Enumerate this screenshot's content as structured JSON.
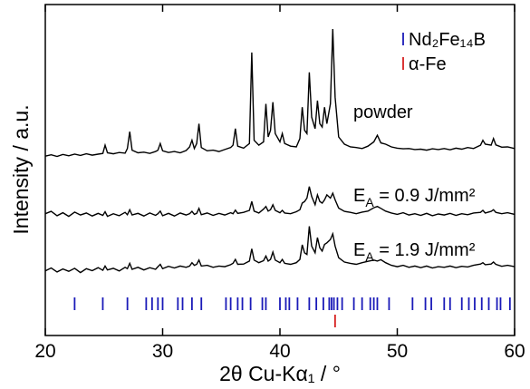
{
  "chart_data": {
    "type": "line",
    "x_label": "2θ Cu-Kα₁ / °",
    "y_label": "Intensity / a.u.",
    "xlim": [
      20,
      60
    ],
    "xticks": [
      20,
      30,
      40,
      50,
      60
    ],
    "ylim": [
      0,
      100
    ],
    "legend": "upper right",
    "x": [
      20,
      20.5,
      21,
      21.5,
      22,
      22.5,
      23,
      23.5,
      24,
      24.5,
      24.9,
      25.1,
      25.3,
      25.8,
      26.3,
      26.8,
      27.0,
      27.2,
      27.4,
      27.9,
      28.4,
      28.9,
      29.4,
      29.6,
      29.8,
      30.0,
      30.5,
      31.0,
      31.5,
      32.0,
      32.3,
      32.5,
      32.7,
      32.9,
      33.1,
      33.3,
      33.8,
      34.3,
      34.8,
      35.3,
      35.8,
      36.0,
      36.2,
      36.4,
      36.9,
      37.4,
      37.6,
      37.8,
      38.2,
      38.6,
      38.8,
      39.0,
      39.2,
      39.4,
      39.6,
      40.0,
      40.2,
      40.4,
      40.9,
      41.4,
      41.7,
      41.9,
      42.1,
      42.3,
      42.5,
      42.7,
      43.0,
      43.2,
      43.4,
      43.6,
      43.8,
      44.0,
      44.3,
      44.5,
      44.7,
      45.0,
      45.5,
      46.0,
      46.5,
      47.0,
      47.5,
      48.0,
      48.3,
      48.6,
      49.0,
      49.5,
      50.0,
      50.5,
      51.0,
      51.5,
      52.0,
      52.5,
      53.0,
      53.5,
      54.0,
      54.5,
      55.0,
      55.5,
      56.0,
      56.5,
      57.1,
      57.3,
      57.5,
      58.0,
      58.2,
      58.4,
      58.9,
      59.4,
      60
    ],
    "series": [
      {
        "name": [
          "powder"
        ],
        "color": "#000000",
        "values": [
          54.2,
          54.6,
          54.1,
          54.7,
          54.3,
          54.8,
          54.4,
          54.9,
          54.5,
          54.8,
          55.0,
          57.5,
          55.2,
          54.9,
          55.3,
          55.1,
          56.5,
          61.6,
          56.0,
          55.2,
          55.4,
          55.0,
          55.6,
          56.0,
          58.0,
          55.8,
          55.3,
          55.6,
          55.2,
          55.9,
          57.0,
          59.0,
          56.5,
          58.0,
          64.0,
          56.8,
          55.8,
          56.0,
          55.6,
          56.2,
          56.8,
          57.5,
          62.5,
          57.2,
          56.6,
          58.0,
          85.5,
          59.0,
          57.5,
          58.5,
          70.0,
          60.0,
          62.0,
          70.5,
          61.0,
          58.5,
          61.0,
          58.0,
          57.2,
          57.0,
          59.5,
          69.0,
          62.0,
          61.0,
          79.5,
          66.0,
          62.5,
          71.0,
          64.0,
          63.0,
          69.0,
          64.0,
          70.0,
          92.6,
          72.0,
          60.0,
          57.8,
          57.0,
          56.8,
          56.5,
          57.2,
          58.5,
          60.5,
          58.2,
          57.8,
          57.0,
          56.6,
          56.4,
          56.5,
          56.2,
          56.3,
          56.0,
          56.4,
          56.2,
          56.5,
          56.1,
          56.6,
          56.3,
          56.8,
          56.5,
          57.5,
          59.0,
          57.8,
          57.5,
          59.5,
          57.6,
          56.9,
          57.0,
          56.5
        ]
      },
      {
        "name": [
          "E",
          "A",
          " = 0.9 J/mm²"
        ],
        "color": "#000000",
        "values": [
          36.8,
          37.5,
          36.2,
          37.1,
          36.0,
          37.3,
          36.4,
          37.0,
          36.1,
          36.9,
          36.3,
          37.4,
          36.0,
          36.8,
          36.2,
          37.2,
          36.5,
          38.0,
          36.4,
          36.9,
          36.1,
          37.0,
          36.3,
          36.8,
          37.6,
          36.2,
          36.9,
          36.1,
          37.0,
          36.4,
          36.8,
          37.5,
          36.6,
          36.9,
          38.4,
          36.5,
          37.0,
          36.3,
          36.9,
          36.4,
          37.1,
          36.8,
          37.9,
          36.9,
          37.2,
          37.8,
          40.5,
          37.6,
          37.0,
          38.2,
          39.0,
          37.6,
          38.0,
          39.5,
          37.8,
          37.1,
          37.8,
          37.0,
          36.8,
          37.4,
          38.0,
          40.0,
          40.5,
          41.5,
          45.0,
          42.0,
          39.5,
          42.5,
          40.5,
          40.0,
          41.0,
          42.5,
          41.5,
          43.0,
          41.0,
          38.5,
          37.5,
          37.2,
          36.8,
          37.3,
          37.6,
          38.6,
          39.0,
          38.4,
          37.6,
          37.0,
          36.6,
          37.1,
          36.4,
          36.8,
          36.3,
          36.9,
          36.2,
          36.7,
          36.4,
          36.9,
          36.3,
          36.8,
          36.5,
          37.0,
          37.2,
          37.8,
          37.0,
          37.5,
          38.0,
          37.2,
          36.8,
          37.1,
          36.6
        ]
      },
      {
        "name": [
          "E",
          "A",
          " = 1.9 J/mm²"
        ],
        "color": "#000000",
        "values": [
          19.5,
          20.4,
          19.2,
          20.1,
          19.4,
          20.3,
          19.0,
          20.2,
          19.6,
          20.5,
          19.7,
          21.0,
          19.8,
          20.3,
          19.5,
          20.6,
          20.2,
          21.8,
          20.0,
          20.6,
          19.8,
          20.5,
          20.0,
          20.8,
          21.5,
          20.2,
          20.9,
          20.4,
          21.0,
          20.6,
          21.0,
          22.0,
          21.2,
          21.5,
          22.8,
          21.0,
          21.2,
          20.6,
          21.0,
          20.8,
          21.4,
          21.8,
          23.0,
          21.5,
          21.6,
          22.5,
          26.2,
          22.8,
          22.0,
          22.6,
          24.0,
          22.5,
          23.0,
          25.2,
          22.8,
          22.0,
          23.0,
          21.8,
          21.5,
          22.0,
          23.0,
          27.4,
          25.0,
          24.5,
          33.0,
          27.0,
          25.0,
          29.6,
          26.5,
          25.5,
          27.5,
          28.0,
          29.0,
          30.7,
          27.0,
          23.5,
          22.2,
          21.8,
          21.5,
          22.0,
          22.4,
          22.8,
          22.5,
          22.9,
          22.0,
          21.2,
          20.8,
          21.2,
          20.6,
          21.0,
          20.5,
          21.0,
          20.4,
          20.8,
          20.6,
          21.0,
          20.5,
          20.9,
          20.7,
          21.2,
          21.6,
          22.0,
          21.4,
          21.6,
          22.2,
          21.5,
          20.9,
          21.2,
          20.8
        ]
      }
    ],
    "references": [
      {
        "name": "Nd₂Fe₁₄B",
        "color": "#1a1ab8",
        "positions": [
          22.5,
          24.9,
          27.0,
          28.6,
          29.1,
          29.6,
          30.0,
          31.3,
          31.7,
          32.5,
          33.3,
          35.4,
          35.8,
          36.4,
          36.8,
          37.5,
          38.5,
          38.8,
          40.0,
          40.5,
          40.8,
          41.5,
          42.5,
          43.1,
          43.7,
          44.2,
          44.4,
          44.6,
          44.9,
          45.3,
          46.3,
          47.0,
          47.7,
          48.0,
          48.3,
          49.3,
          51.3,
          52.4,
          52.9,
          54.0,
          54.5,
          55.5,
          56.1,
          56.6,
          57.2,
          57.8,
          58.5,
          58.8,
          59.6
        ]
      },
      {
        "name": "α-Fe",
        "color": "#d62020",
        "positions": [
          44.7
        ]
      }
    ]
  }
}
